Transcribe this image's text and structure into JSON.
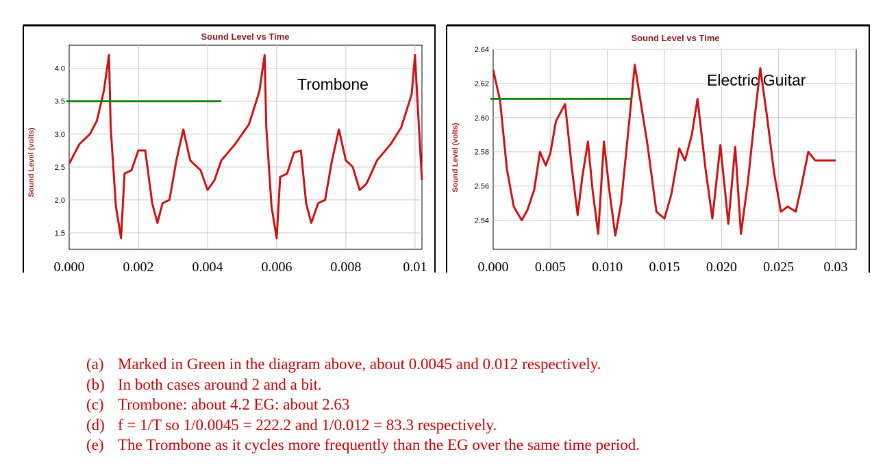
{
  "colors": {
    "trace": "#cc1111",
    "period_marker": "#118811",
    "grid": "#c8c8c8",
    "title_text": "#8b1a1a",
    "answer_text": "#cc0000"
  },
  "chart_data": [
    {
      "type": "line",
      "title": "Sound Level vs Time",
      "annotation": "Trombone",
      "ylabel": "Sound Level (volts)",
      "xlabel": "",
      "y_ticks": [
        "1.5",
        "2.0",
        "2.5",
        "3.0",
        "3.5",
        "4.0"
      ],
      "x_ticks": [
        "0.000",
        "0.002",
        "0.004",
        "0.006",
        "0.008",
        "0.01"
      ],
      "xlim": [
        0,
        0.0102
      ],
      "ylim": [
        1.25,
        4.35
      ],
      "grid": true,
      "series": [
        {
          "x": [
            0,
            0.0003,
            0.0006,
            0.0008,
            0.001,
            0.00115,
            0.0012,
            0.00135,
            0.0015,
            0.0016,
            0.0018,
            0.002,
            0.0022,
            0.0024,
            0.00255,
            0.0027,
            0.0029,
            0.0031,
            0.0033,
            0.0035,
            0.0038,
            0.004,
            0.0042,
            0.0044,
            0.0048,
            0.0052,
            0.0055,
            0.00565,
            0.0057,
            0.00585,
            0.006,
            0.0061,
            0.0063,
            0.0065,
            0.0067,
            0.00685,
            0.007,
            0.0072,
            0.0074,
            0.0076,
            0.0078,
            0.008,
            0.0082,
            0.0084,
            0.0086,
            0.0089,
            0.0093,
            0.0096,
            0.0099,
            0.01,
            0.01005,
            0.0102
          ],
          "y": [
            2.55,
            2.85,
            3.0,
            3.2,
            3.65,
            4.2,
            3.1,
            1.9,
            1.42,
            2.4,
            2.45,
            2.75,
            2.75,
            1.95,
            1.65,
            1.95,
            2.0,
            2.6,
            3.07,
            2.6,
            2.45,
            2.15,
            2.3,
            2.6,
            2.85,
            3.15,
            3.65,
            4.2,
            3.1,
            1.9,
            1.42,
            2.35,
            2.4,
            2.72,
            2.75,
            1.95,
            1.65,
            1.95,
            2.0,
            2.6,
            3.07,
            2.6,
            2.5,
            2.15,
            2.25,
            2.6,
            2.85,
            3.1,
            3.6,
            4.2,
            3.7,
            2.3
          ]
        }
      ],
      "period_marker": {
        "x_start": 0,
        "x_end": 0.0044,
        "y": 3.5
      }
    },
    {
      "type": "line",
      "title": "Sound Level vs Time",
      "annotation": "Electric Guitar",
      "ylabel": "Sound Level (volts)",
      "xlabel": "",
      "y_ticks": [
        "2.54",
        "2.56",
        "2.58",
        "2.60",
        "2.62",
        "2.64"
      ],
      "x_ticks": [
        "0.000",
        "0.005",
        "0.010",
        "0.015",
        "0.020",
        "0.025",
        "0.03"
      ],
      "xlim": [
        0,
        0.0318
      ],
      "ylim": [
        2.523,
        2.64
      ],
      "grid": true,
      "series": [
        {
          "x": [
            0,
            0.0006,
            0.0012,
            0.0018,
            0.0025,
            0.003,
            0.0036,
            0.0041,
            0.0046,
            0.005,
            0.0055,
            0.0063,
            0.0069,
            0.0074,
            0.0078,
            0.0083,
            0.0087,
            0.0092,
            0.0097,
            0.0102,
            0.0107,
            0.0112,
            0.0118,
            0.0124,
            0.0129,
            0.0135,
            0.0143,
            0.015,
            0.0156,
            0.0163,
            0.0168,
            0.0174,
            0.0179,
            0.0186,
            0.0192,
            0.0199,
            0.0206,
            0.0212,
            0.0217,
            0.0223,
            0.0229,
            0.0234,
            0.024,
            0.0246,
            0.0252,
            0.0258,
            0.0265,
            0.027,
            0.0276,
            0.0282,
            0.0288,
            0.0292,
            0.0296,
            0.03
          ],
          "y": [
            2.628,
            2.61,
            2.57,
            2.548,
            2.54,
            2.546,
            2.558,
            2.58,
            2.572,
            2.579,
            2.598,
            2.608,
            2.57,
            2.543,
            2.565,
            2.586,
            2.558,
            2.532,
            2.586,
            2.556,
            2.531,
            2.55,
            2.59,
            2.631,
            2.61,
            2.585,
            2.545,
            2.541,
            2.555,
            2.582,
            2.575,
            2.59,
            2.611,
            2.57,
            2.541,
            2.584,
            2.538,
            2.583,
            2.532,
            2.562,
            2.6,
            2.629,
            2.6,
            2.568,
            2.545,
            2.548,
            2.545,
            2.56,
            2.58,
            2.575,
            2.575,
            2.575,
            2.575,
            2.575
          ]
        }
      ],
      "period_marker": {
        "x_start": 0,
        "x_end": 0.0121,
        "y": 2.611
      }
    }
  ],
  "answers": [
    {
      "label": "(a)",
      "text": "Marked in Green in the diagram above, about 0.0045 and 0.012 respectively."
    },
    {
      "label": "(b)",
      "text": "In both cases around 2 and a bit."
    },
    {
      "label": "(c)",
      "text": "Trombone: about 4.2   EG:  about 2.63"
    },
    {
      "label": "(d)",
      "text": "f = 1/T   so 1/0.0045 = 222.2    and   1/0.012 = 83.3   respectively."
    },
    {
      "label": "(e)",
      "text": "The Trombone as it cycles more frequently than the EG over the same time period."
    }
  ]
}
